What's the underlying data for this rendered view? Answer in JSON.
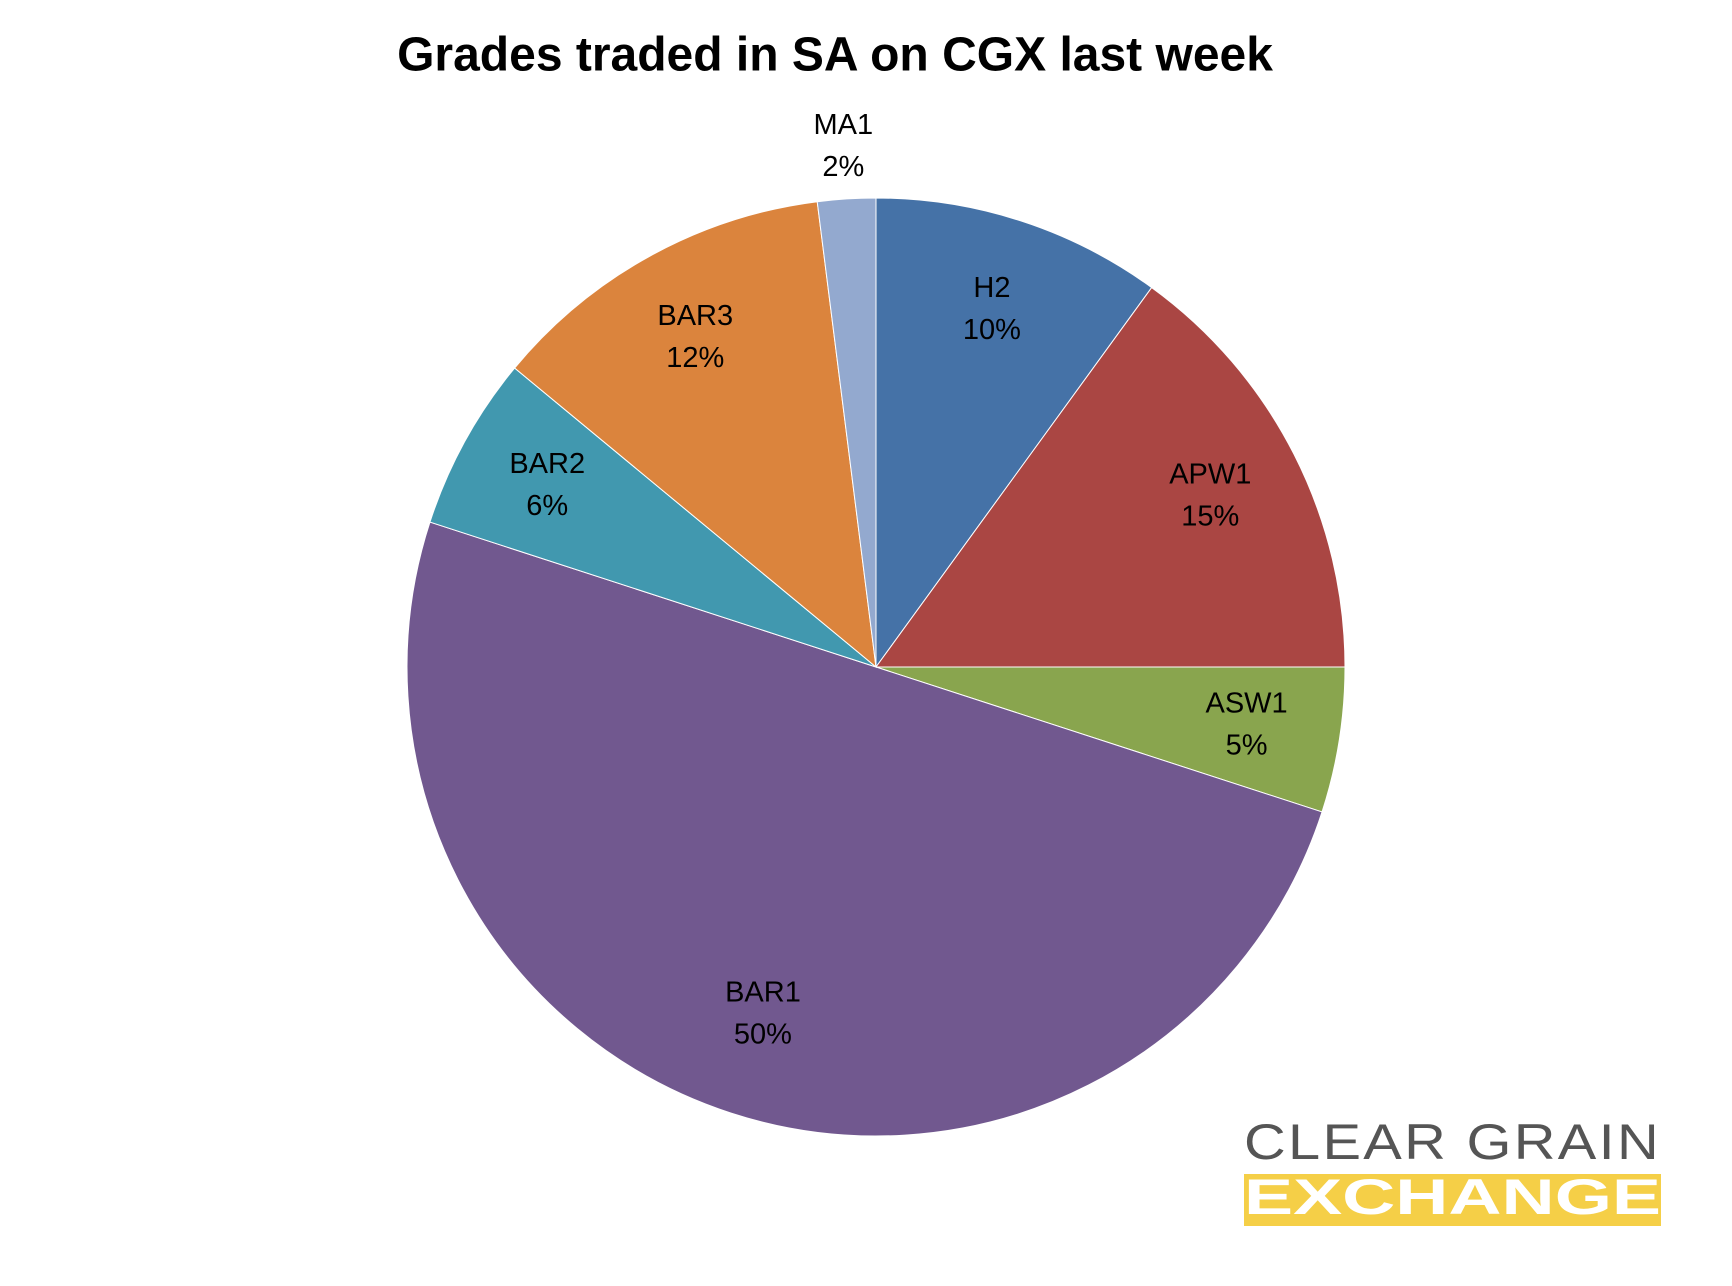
{
  "chart_data": {
    "type": "pie",
    "title": "Grades traded in SA on CGX last week",
    "categories": [
      "H2",
      "APW1",
      "ASW1",
      "BAR1",
      "BAR2",
      "BAR3",
      "MA1"
    ],
    "values": [
      10,
      15,
      5,
      50,
      6,
      12,
      2
    ],
    "value_labels": [
      "10%",
      "15%",
      "5%",
      "50%",
      "6%",
      "12%",
      "2%"
    ],
    "colors": [
      "#4572a7",
      "#aa4643",
      "#89a54e",
      "#71588f",
      "#4198af",
      "#db843d",
      "#93a9cf"
    ]
  },
  "logo": {
    "line1": "CLEAR GRAIN",
    "line2": "EXCHANGE"
  }
}
